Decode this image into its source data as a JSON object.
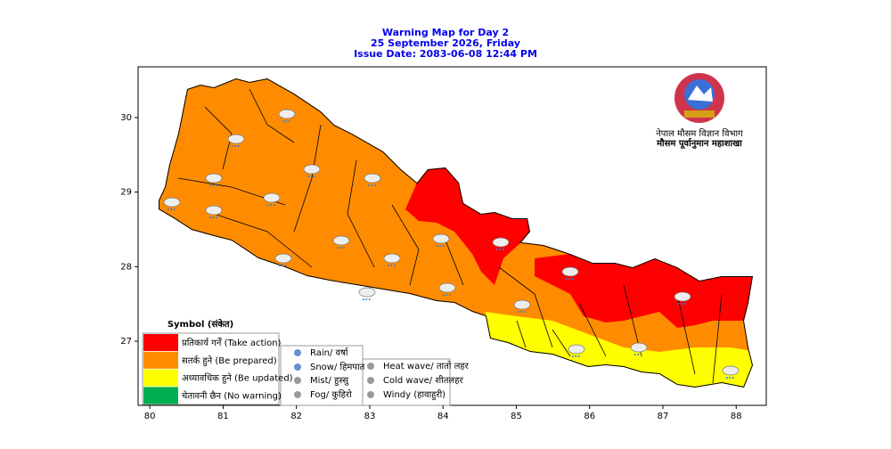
{
  "title": [
    "Warning Map for Day 2",
    "25 September 2026, Friday",
    "Issue Date: 2083-06-08 12:44 PM"
  ],
  "axes": {
    "xlim": [
      79.84,
      88.41
    ],
    "ylim": [
      26.14,
      30.68
    ],
    "xticks": [
      80,
      81,
      82,
      83,
      84,
      85,
      86,
      87,
      88
    ],
    "yticks": [
      27,
      28,
      29,
      30
    ]
  },
  "legend": {
    "title": "Symbol (संकेत)",
    "levels": [
      {
        "label": "प्रतिकार्य गर्नें (Take action)",
        "color": "#ff0000"
      },
      {
        "label": "सतर्क हुने (Be prepared)",
        "color": "#ff8c00"
      },
      {
        "label": "अध्यावधिक हुने (Be updated)",
        "color": "#ffff00"
      },
      {
        "label": "चेतावनी छैन (No warning)",
        "color": "#00b050"
      }
    ],
    "symbols": [
      "Rain/ वर्षा",
      "Snow/ हिमपात",
      "Mist/ हुस्सु",
      "Fog/ कुहिरो",
      "Heat wave/ तातो लहर",
      "Cold wave/ शीतलहर",
      "Windy (हावाहुरी)"
    ]
  },
  "logo": [
    "नेपाल मौसम विज्ञान विभाग",
    "मौसम पूर्वानुमान महाशाखा"
  ]
}
